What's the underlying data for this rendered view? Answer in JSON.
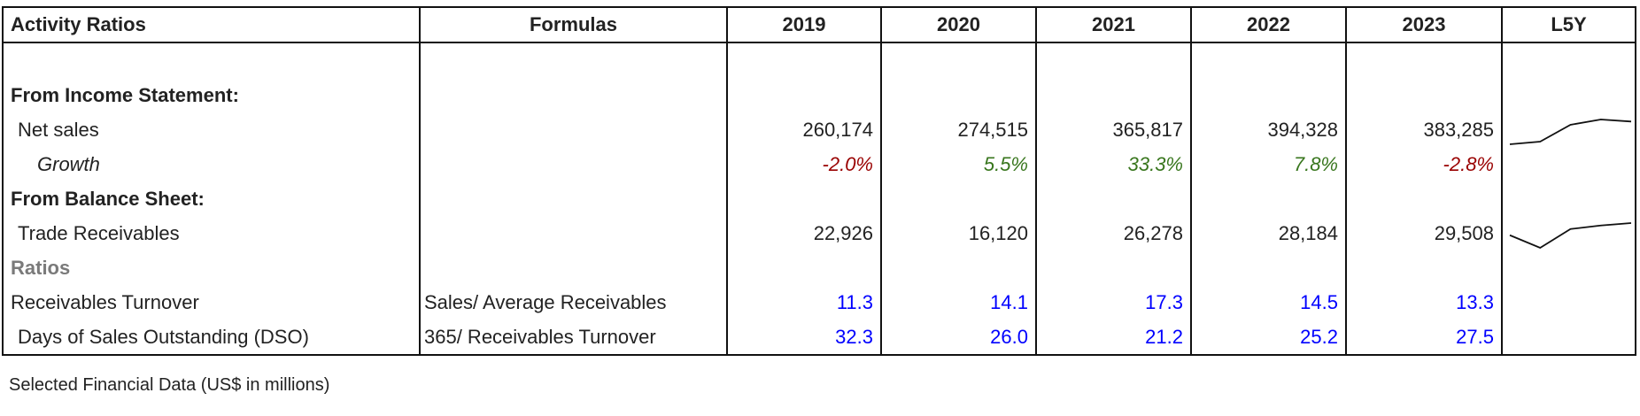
{
  "header": {
    "title": "Activity Ratios",
    "formulas": "Formulas",
    "years": [
      "2019",
      "2020",
      "2021",
      "2022",
      "2023"
    ],
    "l5y": "L5Y"
  },
  "sections": {
    "income": "From Income Statement:",
    "balance": "From Balance Sheet:",
    "ratios": "Ratios"
  },
  "rows": {
    "net_sales": {
      "label": "Net sales",
      "values": [
        "260,174",
        "274,515",
        "365,817",
        "394,328",
        "383,285"
      ],
      "raw": [
        260174,
        274515,
        365817,
        394328,
        383285
      ]
    },
    "growth": {
      "label": "Growth",
      "values": [
        "-2.0%",
        "5.5%",
        "33.3%",
        "7.8%",
        "-2.8%"
      ]
    },
    "trade_receivables": {
      "label": "Trade Receivables",
      "values": [
        "22,926",
        "16,120",
        "26,278",
        "28,184",
        "29,508"
      ],
      "raw": [
        22926,
        16120,
        26278,
        28184,
        29508
      ]
    },
    "receivables_turnover": {
      "label": "Receivables Turnover",
      "formula": "Sales/ Average Receivables",
      "values": [
        "11.3",
        "14.1",
        "17.3",
        "14.5",
        "13.3"
      ]
    },
    "dso": {
      "label": "Days of Sales Outstanding (DSO)",
      "formula": "365/ Receivables Turnover",
      "values": [
        "32.3",
        "26.0",
        "21.2",
        "25.2",
        "27.5"
      ]
    }
  },
  "footer": "Selected Financial Data (US$ in millions)",
  "colors": {
    "negative": "#990000",
    "positive": "#38761d",
    "ratio": "#0000ff"
  }
}
